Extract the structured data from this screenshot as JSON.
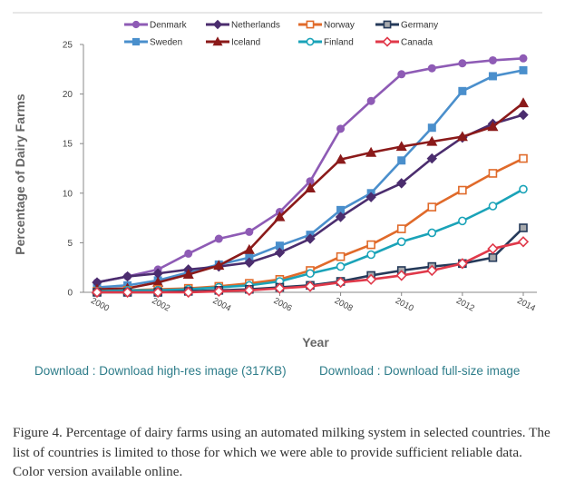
{
  "chart_data": {
    "type": "line",
    "title": "",
    "xlabel": "Year",
    "ylabel": "Percentage of Dairy Farms",
    "xlim": [
      2000,
      2014
    ],
    "ylim": [
      0,
      25
    ],
    "x_ticks": [
      2000,
      2002,
      2004,
      2006,
      2008,
      2010,
      2012,
      2014
    ],
    "y_ticks": [
      0,
      5,
      10,
      15,
      20,
      25
    ],
    "grid": false,
    "legend_position": "top",
    "x": [
      2000,
      2001,
      2002,
      2003,
      2004,
      2005,
      2006,
      2007,
      2008,
      2009,
      2010,
      2011,
      2012,
      2013,
      2014
    ],
    "series": [
      {
        "name": "Denmark",
        "color": "#8e5bb5",
        "marker": "circle-filled",
        "values": [
          1.0,
          1.6,
          2.3,
          3.9,
          5.4,
          6.1,
          8.1,
          11.2,
          16.5,
          19.3,
          22.0,
          22.6,
          23.1,
          23.4,
          23.6
        ]
      },
      {
        "name": "Sweden",
        "color": "#4a8fcc",
        "marker": "square-filled",
        "values": [
          0.5,
          0.7,
          1.2,
          2.0,
          2.8,
          3.5,
          4.7,
          5.8,
          8.3,
          10.0,
          13.3,
          16.6,
          20.3,
          21.8,
          22.4
        ]
      },
      {
        "name": "Netherlands",
        "color": "#4b2d6e",
        "marker": "diamond-filled",
        "values": [
          1.0,
          1.6,
          1.9,
          2.3,
          2.6,
          3.0,
          4.0,
          5.4,
          7.6,
          9.6,
          11.0,
          13.5,
          15.6,
          17.0,
          17.9
        ]
      },
      {
        "name": "Iceland",
        "color": "#8b1a1a",
        "marker": "triangle-filled",
        "values": [
          0.3,
          0.4,
          1.0,
          1.8,
          2.7,
          4.3,
          7.6,
          10.5,
          13.4,
          14.1,
          14.7,
          15.2,
          15.7,
          16.7,
          19.1
        ]
      },
      {
        "name": "Norway",
        "color": "#e06a2a",
        "marker": "square-open",
        "values": [
          0.1,
          0.2,
          0.3,
          0.4,
          0.6,
          0.9,
          1.3,
          2.2,
          3.6,
          4.8,
          6.4,
          8.6,
          10.3,
          12.0,
          13.5
        ]
      },
      {
        "name": "Finland",
        "color": "#1aa3b8",
        "marker": "circle-open",
        "values": [
          0.1,
          0.2,
          0.2,
          0.3,
          0.5,
          0.7,
          1.1,
          1.9,
          2.6,
          3.8,
          5.1,
          6.0,
          7.2,
          8.7,
          10.4
        ]
      },
      {
        "name": "Germany",
        "color": "#253a5a",
        "marker": "square-grey",
        "values": [
          0.0,
          0.0,
          0.0,
          0.1,
          0.2,
          0.3,
          0.5,
          0.7,
          1.1,
          1.7,
          2.2,
          2.6,
          2.9,
          3.5,
          6.5
        ]
      },
      {
        "name": "Canada",
        "color": "#e0394a",
        "marker": "diamond-open",
        "values": [
          0.0,
          0.0,
          0.0,
          0.0,
          0.1,
          0.2,
          0.4,
          0.6,
          1.0,
          1.3,
          1.7,
          2.2,
          2.9,
          4.4,
          5.1
        ]
      }
    ]
  },
  "legend": {
    "columns": [
      [
        "Denmark",
        "Sweden"
      ],
      [
        "Netherlands",
        "Iceland"
      ],
      [
        "Norway",
        "Finland"
      ],
      [
        "Germany",
        "Canada"
      ]
    ]
  },
  "links": {
    "highres": "Download : Download high-res image (317KB)",
    "fullsize": "Download : Download full-size image"
  },
  "caption": "Figure 4. Percentage of dairy farms using an automated milking system in selected countries. The list of countries is limited to those for which we were able to provide sufficient reliable data. Color version available online."
}
